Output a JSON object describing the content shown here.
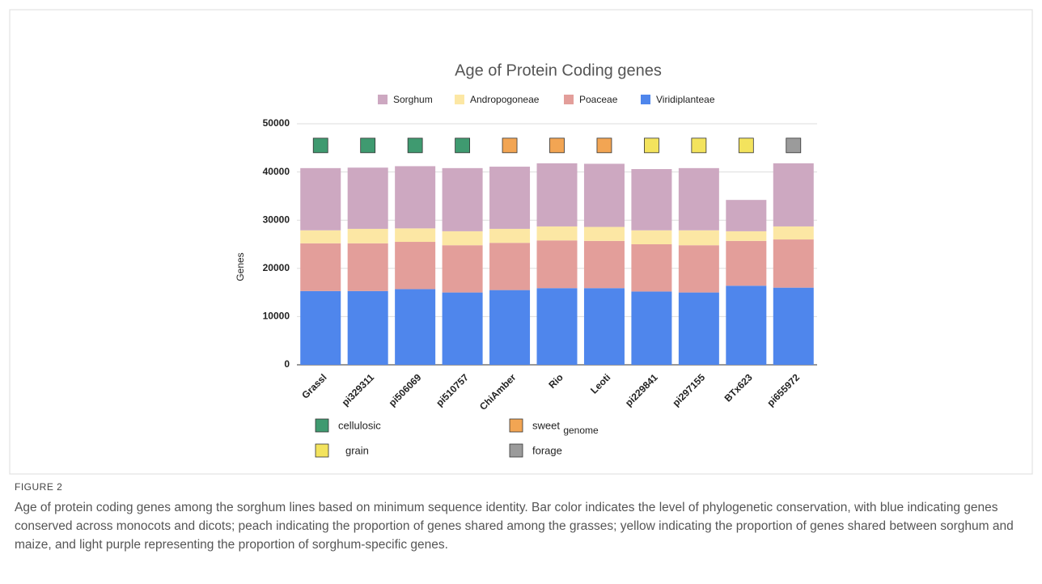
{
  "figure_label": "FIGURE 2",
  "caption": "Age of protein coding genes among the sorghum lines based on minimum sequence identity. Bar color indicates the level of phylogenetic conservation, with blue indicating genes conserved across monocots and dicots; peach indicating the proportion of genes shared among the grasses; yellow indicating the proportion of genes shared between sorghum and maize, and light purple representing the proportion of sorghum-specific genes.",
  "chart_data": {
    "type": "stacked_bar",
    "title": "Age of Protein Coding genes",
    "x_label": "genome",
    "y_label": "Genes",
    "categories": [
      "Grassl",
      "pi329311",
      "pi506069",
      "pi510757",
      "ChiAmber",
      "Rio",
      "Leoti",
      "pi229841",
      "pi297155",
      "BTx623",
      "pi655972"
    ],
    "series": [
      {
        "name": "Viridiplanteae",
        "color": "#4f86ec",
        "values": [
          15300,
          15300,
          15700,
          15000,
          15500,
          15900,
          15900,
          15200,
          15000,
          16400,
          16000
        ]
      },
      {
        "name": "Poaceae",
        "color": "#e39e9a",
        "values": [
          9900,
          9900,
          9800,
          9800,
          9800,
          9900,
          9800,
          9800,
          9800,
          9300,
          10000
        ]
      },
      {
        "name": "Andropogoneae",
        "color": "#fce7a4",
        "values": [
          2700,
          3000,
          2800,
          2900,
          2900,
          2900,
          2900,
          2900,
          3100,
          2000,
          2700
        ]
      },
      {
        "name": "Sorghum",
        "color": "#cda8c1",
        "values": [
          12900,
          12700,
          12900,
          13100,
          12900,
          13100,
          13100,
          12700,
          12900,
          6500,
          13100
        ]
      }
    ],
    "ylim": [
      0,
      50000
    ],
    "yticks": [
      0,
      10000,
      20000,
      30000,
      40000,
      50000
    ],
    "grid": true,
    "groups": [
      {
        "name": "cellulosic",
        "color": "#3f9a70"
      },
      {
        "name": "sweet",
        "color": "#f2a553"
      },
      {
        "name": "grain",
        "color": "#f3e35d"
      },
      {
        "name": "forage",
        "color": "#9b9b9b"
      }
    ],
    "category_groups": [
      0,
      0,
      0,
      0,
      1,
      1,
      1,
      2,
      2,
      2,
      3
    ]
  }
}
